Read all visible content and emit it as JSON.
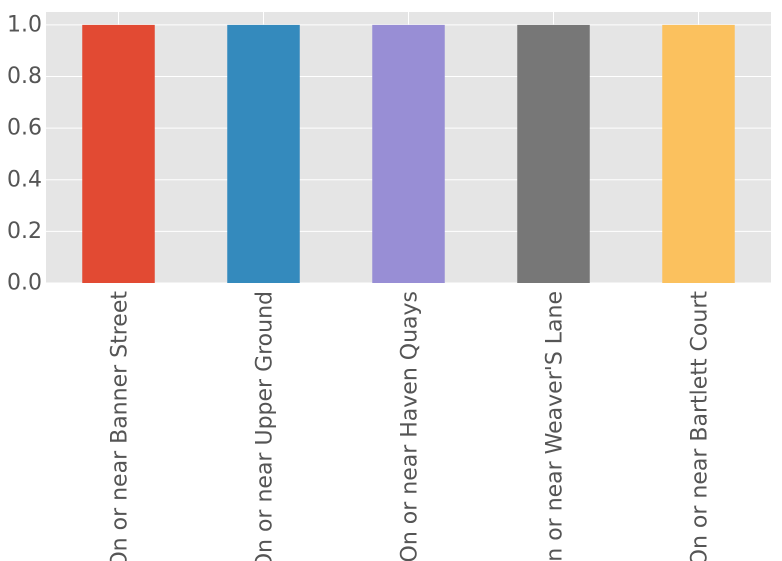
{
  "chart_data": {
    "type": "bar",
    "title": "",
    "xlabel": "",
    "ylabel": "",
    "categories": [
      "On or near Banner Street",
      "On or near Upper Ground",
      "On or near Haven Quays",
      "On or near Weaver'S Lane",
      "On or near Bartlett Court"
    ],
    "values": [
      1.0,
      1.0,
      1.0,
      1.0,
      1.0
    ],
    "bar_colors": [
      "#E24A33",
      "#348ABD",
      "#988ED5",
      "#777777",
      "#FBC15E"
    ],
    "ylim": [
      0,
      1.05
    ],
    "yticks": [
      0.0,
      0.2,
      0.4,
      0.6,
      0.8,
      1.0
    ],
    "ytick_labels": [
      "0.0",
      "0.2",
      "0.4",
      "0.6",
      "0.8",
      "1.0"
    ],
    "grid": true,
    "legend": "none",
    "background_color": "#E5E5E5"
  }
}
